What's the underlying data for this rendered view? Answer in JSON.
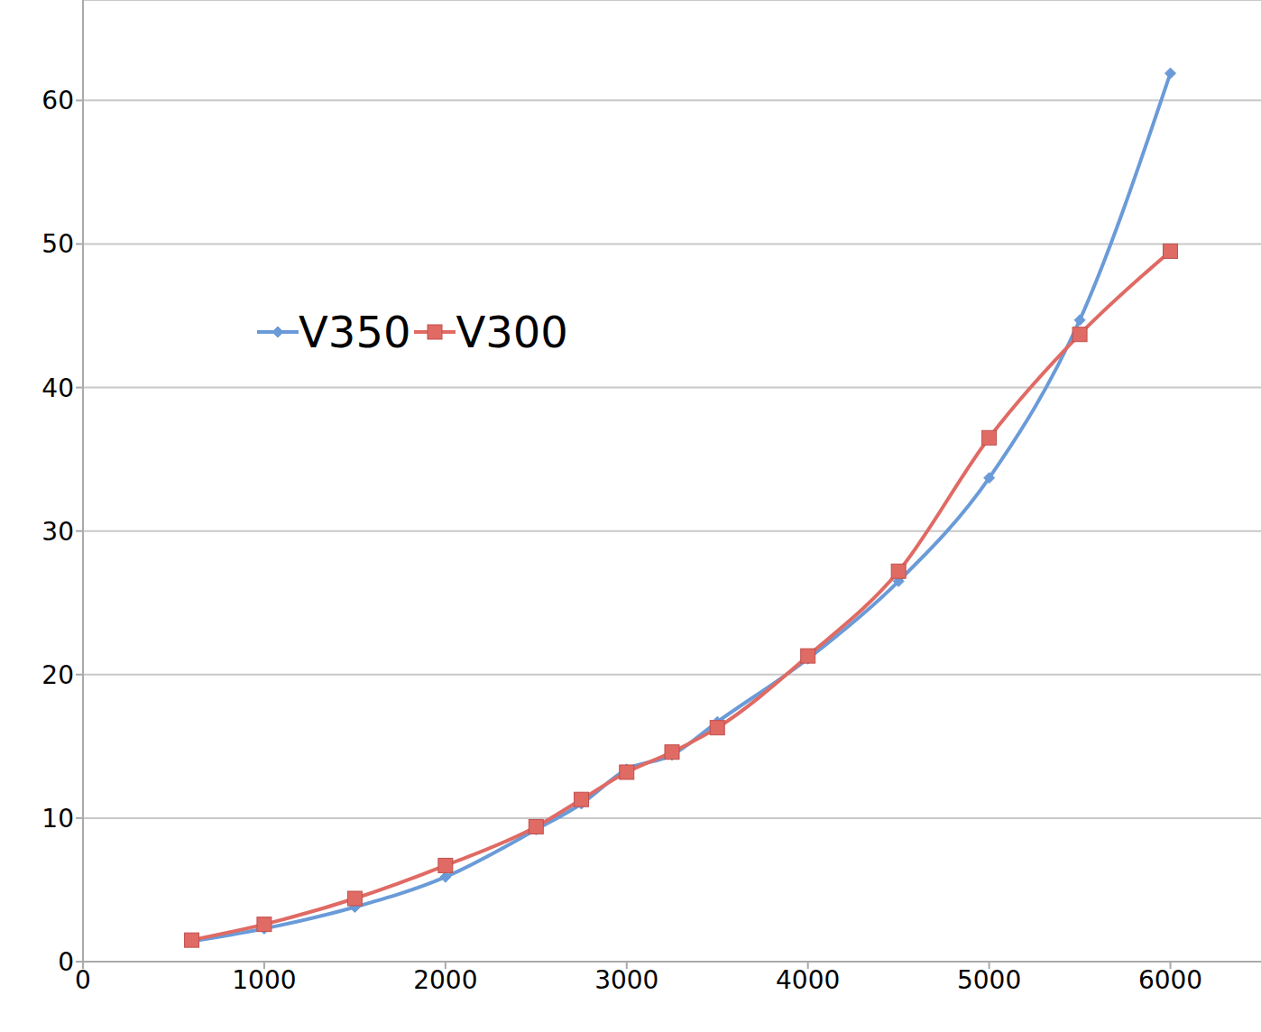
{
  "chart_data": {
    "type": "line",
    "x": [
      600,
      1000,
      1500,
      2000,
      2500,
      2750,
      3000,
      3250,
      3500,
      4000,
      4500,
      5000,
      5500,
      6000
    ],
    "series": [
      {
        "name": "V350",
        "color": "#6a9bd8",
        "marker": "diamond",
        "values": [
          1.4,
          2.3,
          3.8,
          5.9,
          9.2,
          11.0,
          13.4,
          14.4,
          16.7,
          21.1,
          26.5,
          33.7,
          44.7,
          61.9
        ]
      },
      {
        "name": "V300",
        "color": "#e06a64",
        "marker": "square",
        "values": [
          1.5,
          2.6,
          4.4,
          6.7,
          9.4,
          11.3,
          13.2,
          14.6,
          16.3,
          21.3,
          27.2,
          36.5,
          43.7,
          49.5
        ]
      }
    ],
    "xlim": [
      0,
      6500
    ],
    "xticks": [
      0,
      1000,
      2000,
      3000,
      4000,
      5000,
      6000
    ],
    "ylim": [
      0,
      67
    ],
    "yticks": [
      0,
      10,
      20,
      30,
      40,
      50,
      60
    ],
    "grid": true,
    "legend": "left"
  }
}
